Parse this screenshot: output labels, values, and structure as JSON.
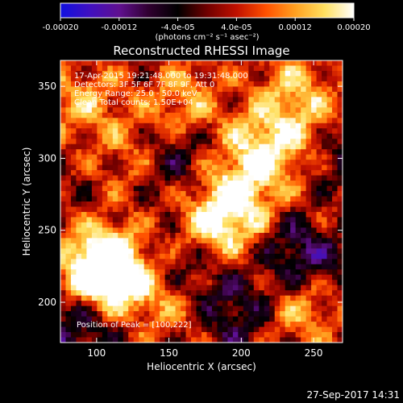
{
  "colorbar": {
    "ticks": [
      "-0.00020",
      "-0.00012",
      "-4.0e-05",
      "4.0e-05",
      "0.00012",
      "0.00020"
    ],
    "units_label": "(photons cm⁻² s⁻¹ asec⁻²)",
    "stops": [
      "#1010e0",
      "#4010c0",
      "#601090",
      "#300030",
      "#000000",
      "#700000",
      "#c01000",
      "#ff5000",
      "#ffa020",
      "#ffe060",
      "#ffffff"
    ]
  },
  "chart_data": {
    "type": "heatmap",
    "title": "Reconstructed RHESSI Image",
    "xlabel": "Heliocentric X (arcsec)",
    "ylabel": "Heliocentric Y (arcsec)",
    "xlim": [
      75,
      270
    ],
    "ylim": [
      172,
      368
    ],
    "xticks": [
      100,
      150,
      200,
      250
    ],
    "yticks": [
      200,
      250,
      300,
      350
    ],
    "colorbar_range": [
      -0.0002,
      0.0002
    ],
    "peak": [
      100,
      222
    ],
    "annotations": [
      "17-Apr-2015 19:21:48.000 to 19:31:48.000",
      "Detectors: 3F 5F 6F 7F 8F 9F, Att 0",
      "Energy Range: 25.0 - 50.0 keV",
      "Clean    Total counts: 1.50E+04"
    ],
    "peak_label": "Position of Peak = [100,222]",
    "bright_regions": [
      {
        "x": 101,
        "y": 225,
        "level": 1.0
      },
      {
        "x": 112,
        "y": 218,
        "level": 0.9
      },
      {
        "x": 215,
        "y": 305,
        "level": 0.85
      },
      {
        "x": 195,
        "y": 270,
        "level": 0.75
      },
      {
        "x": 180,
        "y": 250,
        "level": 0.7
      },
      {
        "x": 240,
        "y": 195,
        "level": 0.65
      },
      {
        "x": 160,
        "y": 340,
        "level": 0.6
      },
      {
        "x": 90,
        "y": 340,
        "level": 0.6
      },
      {
        "x": 130,
        "y": 300,
        "level": 0.55
      },
      {
        "x": 235,
        "y": 350,
        "level": 0.55
      },
      {
        "x": 260,
        "y": 260,
        "level": 0.35
      },
      {
        "x": 150,
        "y": 200,
        "level": 0.5
      },
      {
        "x": 250,
        "y": 320,
        "level": 0.4
      }
    ],
    "dark_regions": [
      {
        "x": 245,
        "y": 235,
        "level": -0.7
      },
      {
        "x": 150,
        "y": 300,
        "level": -0.6
      },
      {
        "x": 90,
        "y": 185,
        "level": -0.55
      },
      {
        "x": 160,
        "y": 225,
        "level": -0.5
      },
      {
        "x": 265,
        "y": 300,
        "level": -0.45
      },
      {
        "x": 200,
        "y": 195,
        "level": -0.45
      }
    ]
  },
  "footer": {
    "timestamp": "27-Sep-2017 14:31"
  }
}
